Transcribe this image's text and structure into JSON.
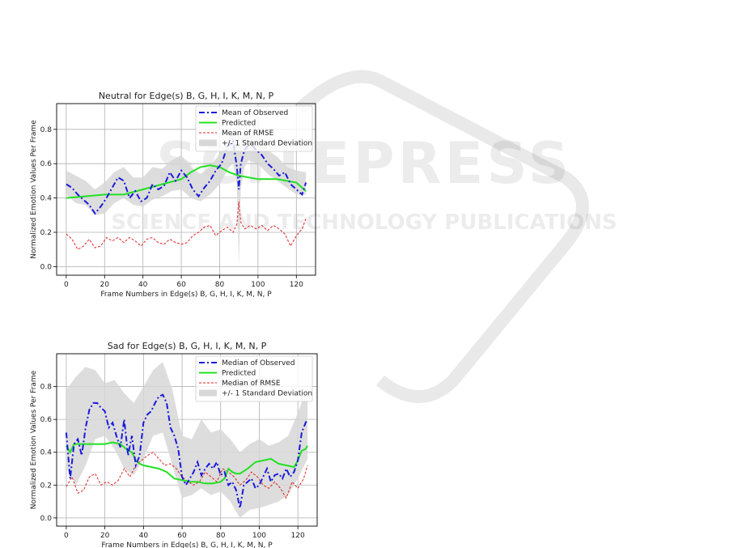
{
  "watermark": {
    "main": "SCITEPRESS",
    "sub": "SCIENCE AND TECHNOLOGY PUBLICATIONS"
  },
  "chart_data": [
    {
      "type": "line",
      "title": "Neutral for Edge(s) B, G, H, I, K, M, N, P",
      "xlabel": "Frame Numbers in Edge(s) B, G, H, I, K, M, N, P",
      "ylabel": "Normalized Emotion Values Per Frame",
      "xlim": [
        -5,
        130
      ],
      "ylim": [
        -0.05,
        0.95
      ],
      "xticks": [
        0,
        20,
        40,
        60,
        80,
        100,
        120
      ],
      "yticks": [
        0.0,
        0.2,
        0.4,
        0.6,
        0.8
      ],
      "grid": true,
      "legend": "top-right",
      "series": [
        {
          "name": "Mean of Observed",
          "style": "dashdot",
          "color": "#1a1adb",
          "x": [
            0,
            3,
            6,
            9,
            12,
            15,
            18,
            21,
            24,
            27,
            30,
            33,
            36,
            39,
            42,
            45,
            48,
            51,
            54,
            57,
            60,
            63,
            66,
            69,
            72,
            75,
            78,
            81,
            84,
            87,
            89,
            90,
            91,
            93,
            96,
            99,
            102,
            105,
            108,
            111,
            114,
            117,
            120,
            123,
            125
          ],
          "y": [
            0.48,
            0.46,
            0.42,
            0.39,
            0.36,
            0.31,
            0.35,
            0.4,
            0.46,
            0.52,
            0.5,
            0.4,
            0.44,
            0.38,
            0.4,
            0.48,
            0.45,
            0.47,
            0.55,
            0.5,
            0.56,
            0.52,
            0.45,
            0.41,
            0.46,
            0.5,
            0.56,
            0.6,
            0.7,
            0.73,
            0.58,
            0.45,
            0.6,
            0.68,
            0.72,
            0.68,
            0.65,
            0.6,
            0.57,
            0.53,
            0.55,
            0.48,
            0.45,
            0.42,
            0.49
          ]
        },
        {
          "name": "Predicted",
          "style": "solid",
          "color": "#22e022",
          "x": [
            0,
            10,
            20,
            30,
            40,
            50,
            60,
            65,
            70,
            75,
            80,
            85,
            90,
            100,
            110,
            120,
            125
          ],
          "y": [
            0.4,
            0.41,
            0.42,
            0.42,
            0.45,
            0.48,
            0.51,
            0.55,
            0.58,
            0.59,
            0.58,
            0.55,
            0.53,
            0.51,
            0.51,
            0.49,
            0.44
          ]
        },
        {
          "name": "Mean of RMSE",
          "style": "dashed",
          "color": "#e02020",
          "x": [
            0,
            3,
            6,
            9,
            12,
            15,
            18,
            21,
            24,
            27,
            30,
            33,
            36,
            39,
            42,
            45,
            48,
            51,
            54,
            57,
            60,
            63,
            66,
            69,
            72,
            75,
            78,
            81,
            84,
            87,
            89,
            90,
            91,
            93,
            96,
            99,
            102,
            105,
            108,
            111,
            114,
            117,
            120,
            123,
            125
          ],
          "y": [
            0.19,
            0.16,
            0.1,
            0.12,
            0.16,
            0.11,
            0.12,
            0.17,
            0.15,
            0.17,
            0.14,
            0.17,
            0.15,
            0.12,
            0.16,
            0.17,
            0.14,
            0.13,
            0.16,
            0.14,
            0.13,
            0.14,
            0.18,
            0.2,
            0.23,
            0.24,
            0.18,
            0.21,
            0.23,
            0.2,
            0.25,
            0.38,
            0.26,
            0.22,
            0.24,
            0.22,
            0.24,
            0.21,
            0.24,
            0.22,
            0.19,
            0.12,
            0.18,
            0.22,
            0.28
          ]
        },
        {
          "name": "+/- 1 Standard Deviation",
          "style": "band",
          "color": "#d7d7d7",
          "x": [
            0,
            5,
            10,
            15,
            20,
            25,
            30,
            35,
            40,
            45,
            50,
            55,
            60,
            65,
            70,
            75,
            80,
            85,
            87,
            89,
            90,
            91,
            93,
            95,
            100,
            105,
            110,
            115,
            120,
            125
          ],
          "lower": [
            0.42,
            0.37,
            0.36,
            0.3,
            0.31,
            0.37,
            0.4,
            0.36,
            0.35,
            0.39,
            0.41,
            0.44,
            0.45,
            0.4,
            0.38,
            0.42,
            0.48,
            0.58,
            0.6,
            0.48,
            0.0,
            0.45,
            0.58,
            0.62,
            0.6,
            0.54,
            0.5,
            0.46,
            0.42,
            0.42
          ],
          "upper": [
            0.56,
            0.53,
            0.5,
            0.45,
            0.49,
            0.55,
            0.58,
            0.52,
            0.52,
            0.58,
            0.57,
            0.62,
            0.65,
            0.58,
            0.54,
            0.58,
            0.66,
            0.76,
            0.79,
            0.74,
            0.9,
            0.74,
            0.76,
            0.77,
            0.76,
            0.68,
            0.64,
            0.58,
            0.56,
            0.55
          ]
        }
      ]
    },
    {
      "type": "line",
      "title": "Sad for Edge(s) B, G, H, I, K, M, N, P",
      "xlabel": "Frame Numbers in Edge(s) B, G, H, I, K, M, N, P",
      "ylabel": "Normalized Emotion Values Per Frame",
      "xlim": [
        -5,
        130
      ],
      "ylim": [
        -0.05,
        1.0
      ],
      "xticks": [
        0,
        20,
        40,
        60,
        80,
        100,
        120
      ],
      "yticks": [
        0.0,
        0.2,
        0.4,
        0.6,
        0.8
      ],
      "grid": true,
      "legend": "top-right",
      "series": [
        {
          "name": "Median of Observed",
          "style": "dashdot",
          "color": "#1a1adb",
          "x": [
            0,
            2,
            4,
            6,
            8,
            10,
            12,
            14,
            16,
            18,
            20,
            22,
            24,
            26,
            28,
            30,
            32,
            34,
            36,
            38,
            40,
            42,
            44,
            46,
            48,
            50,
            52,
            54,
            56,
            58,
            60,
            62,
            64,
            66,
            68,
            70,
            72,
            74,
            76,
            78,
            80,
            82,
            84,
            86,
            88,
            90,
            92,
            94,
            96,
            98,
            100,
            102,
            104,
            106,
            108,
            110,
            112,
            114,
            116,
            118,
            120,
            122,
            124,
            125
          ],
          "y": [
            0.52,
            0.24,
            0.45,
            0.48,
            0.38,
            0.55,
            0.66,
            0.7,
            0.7,
            0.67,
            0.65,
            0.55,
            0.58,
            0.5,
            0.43,
            0.6,
            0.38,
            0.5,
            0.32,
            0.38,
            0.58,
            0.63,
            0.65,
            0.7,
            0.74,
            0.75,
            0.7,
            0.55,
            0.5,
            0.42,
            0.25,
            0.2,
            0.24,
            0.28,
            0.34,
            0.26,
            0.3,
            0.33,
            0.3,
            0.34,
            0.26,
            0.28,
            0.2,
            0.22,
            0.17,
            0.06,
            0.2,
            0.22,
            0.24,
            0.18,
            0.2,
            0.25,
            0.3,
            0.22,
            0.26,
            0.27,
            0.24,
            0.3,
            0.25,
            0.28,
            0.35,
            0.52,
            0.58,
            0.6
          ]
        },
        {
          "name": "Predicted",
          "style": "solid",
          "color": "#22e022",
          "x": [
            0,
            2,
            4,
            8,
            12,
            16,
            20,
            24,
            28,
            30,
            32,
            34,
            36,
            38,
            40,
            44,
            48,
            52,
            56,
            60,
            64,
            68,
            72,
            76,
            80,
            82,
            84,
            86,
            88,
            90,
            94,
            98,
            102,
            106,
            110,
            114,
            118,
            120,
            122,
            124,
            125
          ],
          "y": [
            0.44,
            0.4,
            0.45,
            0.45,
            0.45,
            0.45,
            0.45,
            0.46,
            0.45,
            0.43,
            0.41,
            0.4,
            0.35,
            0.33,
            0.32,
            0.31,
            0.3,
            0.28,
            0.24,
            0.23,
            0.22,
            0.22,
            0.21,
            0.21,
            0.22,
            0.24,
            0.3,
            0.28,
            0.27,
            0.27,
            0.3,
            0.34,
            0.35,
            0.36,
            0.33,
            0.32,
            0.31,
            0.35,
            0.41,
            0.42,
            0.44
          ]
        },
        {
          "name": "Median of RMSE",
          "style": "dashed",
          "color": "#e02020",
          "x": [
            0,
            3,
            6,
            9,
            12,
            15,
            18,
            21,
            24,
            27,
            30,
            33,
            36,
            39,
            42,
            45,
            48,
            51,
            54,
            57,
            60,
            63,
            66,
            69,
            72,
            75,
            78,
            81,
            84,
            87,
            90,
            93,
            96,
            99,
            102,
            105,
            108,
            111,
            114,
            117,
            120,
            123,
            125
          ],
          "y": [
            0.19,
            0.25,
            0.15,
            0.17,
            0.25,
            0.27,
            0.2,
            0.22,
            0.2,
            0.23,
            0.3,
            0.25,
            0.32,
            0.35,
            0.38,
            0.4,
            0.36,
            0.32,
            0.33,
            0.3,
            0.25,
            0.22,
            0.2,
            0.22,
            0.28,
            0.25,
            0.22,
            0.3,
            0.28,
            0.25,
            0.2,
            0.23,
            0.28,
            0.25,
            0.2,
            0.18,
            0.22,
            0.18,
            0.12,
            0.22,
            0.18,
            0.24,
            0.32
          ]
        },
        {
          "name": "+/- 1 Standard Deviation",
          "style": "band",
          "color": "#d7d7d7",
          "x": [
            0,
            5,
            10,
            15,
            20,
            25,
            30,
            35,
            40,
            45,
            50,
            55,
            60,
            65,
            70,
            75,
            80,
            85,
            90,
            95,
            100,
            105,
            110,
            115,
            120,
            125
          ],
          "lower": [
            0.3,
            0.2,
            0.32,
            0.48,
            0.5,
            0.42,
            0.3,
            0.26,
            0.36,
            0.5,
            0.52,
            0.32,
            0.12,
            0.14,
            0.18,
            0.14,
            0.16,
            0.1,
            0.0,
            0.05,
            0.06,
            0.08,
            0.1,
            0.14,
            0.24,
            0.36
          ],
          "upper": [
            0.78,
            0.86,
            0.92,
            0.9,
            0.82,
            0.84,
            0.76,
            0.7,
            0.8,
            0.9,
            0.95,
            0.78,
            0.5,
            0.48,
            0.6,
            0.52,
            0.54,
            0.48,
            0.4,
            0.45,
            0.48,
            0.44,
            0.46,
            0.5,
            0.64,
            0.8
          ]
        }
      ]
    }
  ]
}
